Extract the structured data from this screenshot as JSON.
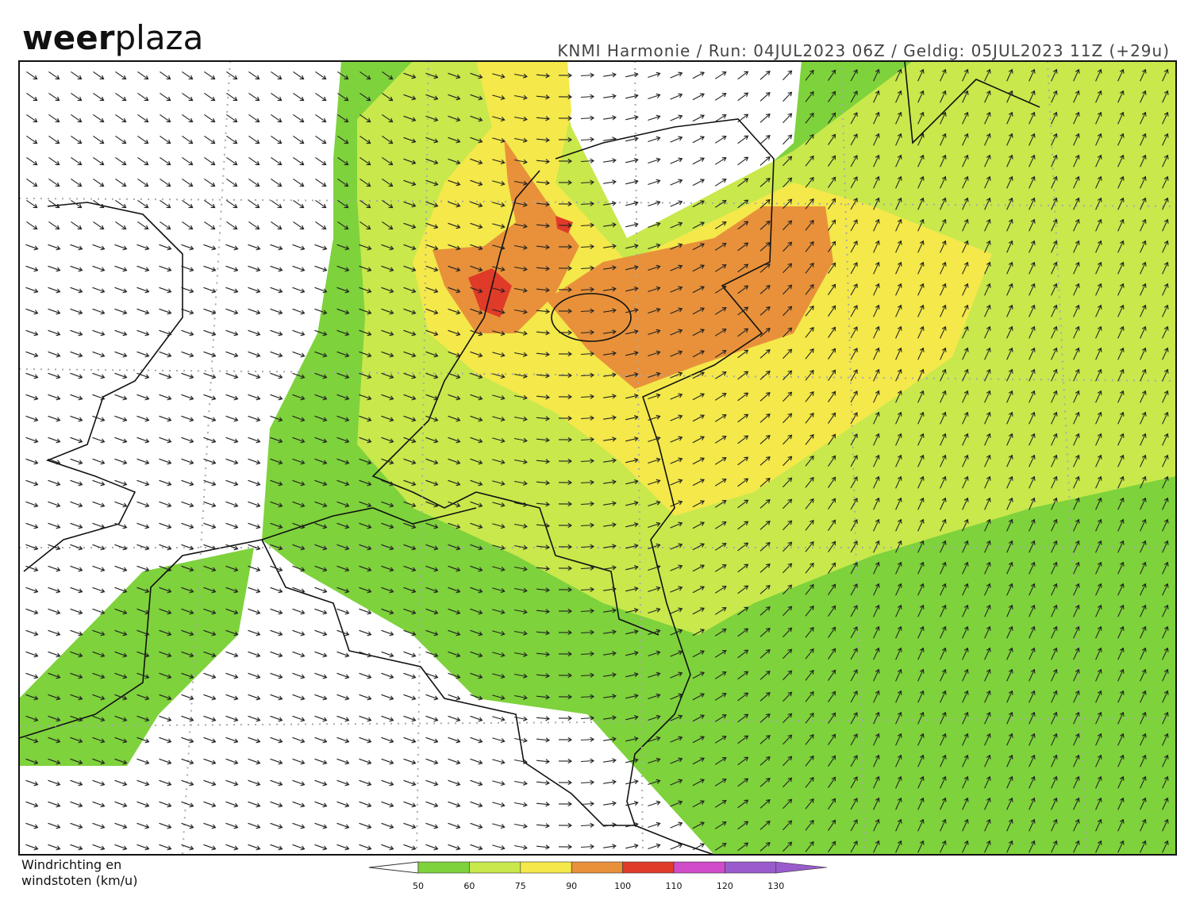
{
  "header": {
    "logo_bold": "weer",
    "logo_light": "plaza",
    "subtitle": "KNMI Harmonie / Run: 04JUL2023 06Z / Geldig: 05JUL2023 11Z (+29u)"
  },
  "legend": {
    "label_lines": [
      "Windrichting en",
      "windstoten (km/u)"
    ],
    "ticks": [
      "50",
      "60",
      "75",
      "90",
      "100",
      "110",
      "120",
      "130"
    ],
    "colors": [
      "#7ed23c",
      "#c8e84c",
      "#f4e84a",
      "#e8913a",
      "#e03a28",
      "#d04cc8",
      "#9a5ccc",
      "#9a5ccc"
    ]
  }
}
